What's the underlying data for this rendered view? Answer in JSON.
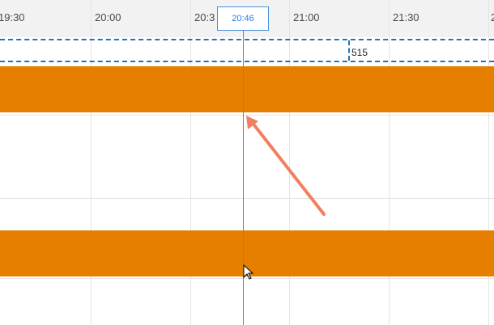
{
  "timeline": {
    "ticks": [
      {
        "label": "19:30"
      },
      {
        "label": "20:00"
      },
      {
        "label": "20:3"
      },
      {
        "label": "21:00"
      },
      {
        "label": "21:30"
      },
      {
        "label": "2"
      }
    ],
    "current_time": "20:46",
    "marker_value": "515"
  },
  "colors": {
    "bar": "#e67e00",
    "marker": "#1f73b7",
    "current_time_line": "#4a90d9",
    "arrow": "#f08060"
  },
  "icons": {
    "cursor": "mouse-pointer-icon",
    "arrow": "annotation-arrow-icon"
  }
}
